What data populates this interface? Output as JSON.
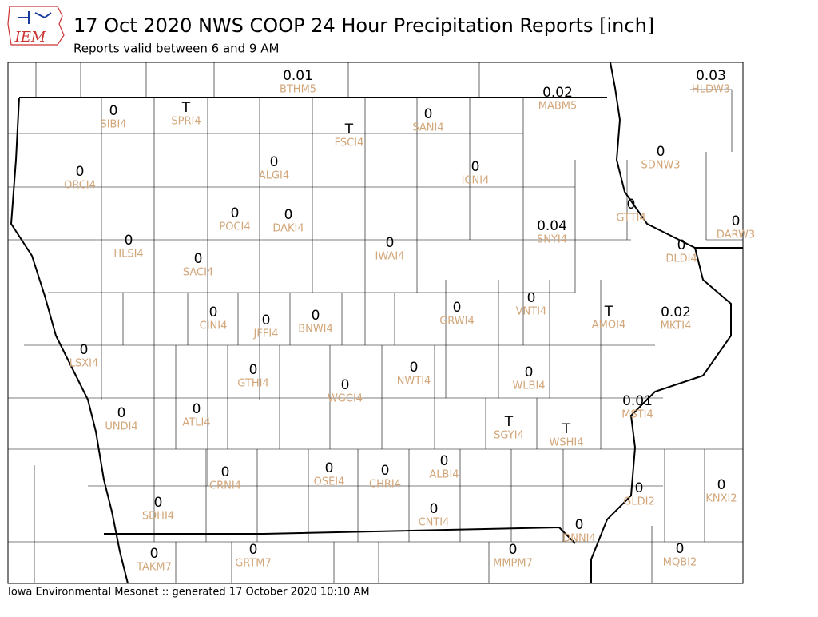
{
  "header": {
    "title": "17 Oct 2020 NWS COOP 24 Hour Precipitation Reports [inch]",
    "subtitle": "Reports valid between 6 and 9 AM",
    "logo": "IEM"
  },
  "footer": "Iowa Environmental Mesonet :: generated 17 October 2020 10:10 AM",
  "stations": [
    {
      "id": "BTHM5",
      "value": 0.01
    },
    {
      "id": "HLDW3",
      "value": 0.03
    },
    {
      "id": "MABM5",
      "value": 0.02
    },
    {
      "id": "SIBI4",
      "value": 0
    },
    {
      "id": "SPRI4",
      "value": "T"
    },
    {
      "id": "FSCI4",
      "value": "T"
    },
    {
      "id": "SANI4",
      "value": 0
    },
    {
      "id": "ALGI4",
      "value": 0
    },
    {
      "id": "ICNI4",
      "value": 0
    },
    {
      "id": "SDNW3",
      "value": 0
    },
    {
      "id": "ORCI4",
      "value": 0
    },
    {
      "id": "POCI4",
      "value": 0
    },
    {
      "id": "DAKI4",
      "value": 0
    },
    {
      "id": "GTTI4",
      "value": 0
    },
    {
      "id": "DARW3",
      "value": 0
    },
    {
      "id": "SNYI4",
      "value": 0.04
    },
    {
      "id": "HLSI4",
      "value": 0
    },
    {
      "id": "IWAI4",
      "value": 0
    },
    {
      "id": "DLDI4",
      "value": 0
    },
    {
      "id": "SACI4",
      "value": 0
    },
    {
      "id": "GRWI4",
      "value": 0
    },
    {
      "id": "VNTI4",
      "value": 0
    },
    {
      "id": "AMOI4",
      "value": "T"
    },
    {
      "id": "MKTI4",
      "value": 0.02
    },
    {
      "id": "CINI4",
      "value": 0
    },
    {
      "id": "JFFI4",
      "value": 0
    },
    {
      "id": "BNWI4",
      "value": 0
    },
    {
      "id": "LSXI4",
      "value": 0
    },
    {
      "id": "GTHI4",
      "value": 0
    },
    {
      "id": "NWTI4",
      "value": 0
    },
    {
      "id": "WLBI4",
      "value": 0
    },
    {
      "id": "WGCI4",
      "value": 0
    },
    {
      "id": "MSTI4",
      "value": 0.01
    },
    {
      "id": "UNDI4",
      "value": 0
    },
    {
      "id": "ATLI4",
      "value": 0
    },
    {
      "id": "SGYI4",
      "value": "T"
    },
    {
      "id": "WSHI4",
      "value": "T"
    },
    {
      "id": "CRNI4",
      "value": 0
    },
    {
      "id": "OSEI4",
      "value": 0
    },
    {
      "id": "CHRI4",
      "value": 0
    },
    {
      "id": "ALBI4",
      "value": 0
    },
    {
      "id": "GLDI2",
      "value": 0
    },
    {
      "id": "KNXI2",
      "value": 0
    },
    {
      "id": "SDHI4",
      "value": 0
    },
    {
      "id": "CNTI4",
      "value": 0
    },
    {
      "id": "DNNI4",
      "value": 0
    },
    {
      "id": "TAKM7",
      "value": 0
    },
    {
      "id": "GRTM7",
      "value": 0
    },
    {
      "id": "MMPM7",
      "value": 0
    },
    {
      "id": "MQBI2",
      "value": 0
    }
  ]
}
